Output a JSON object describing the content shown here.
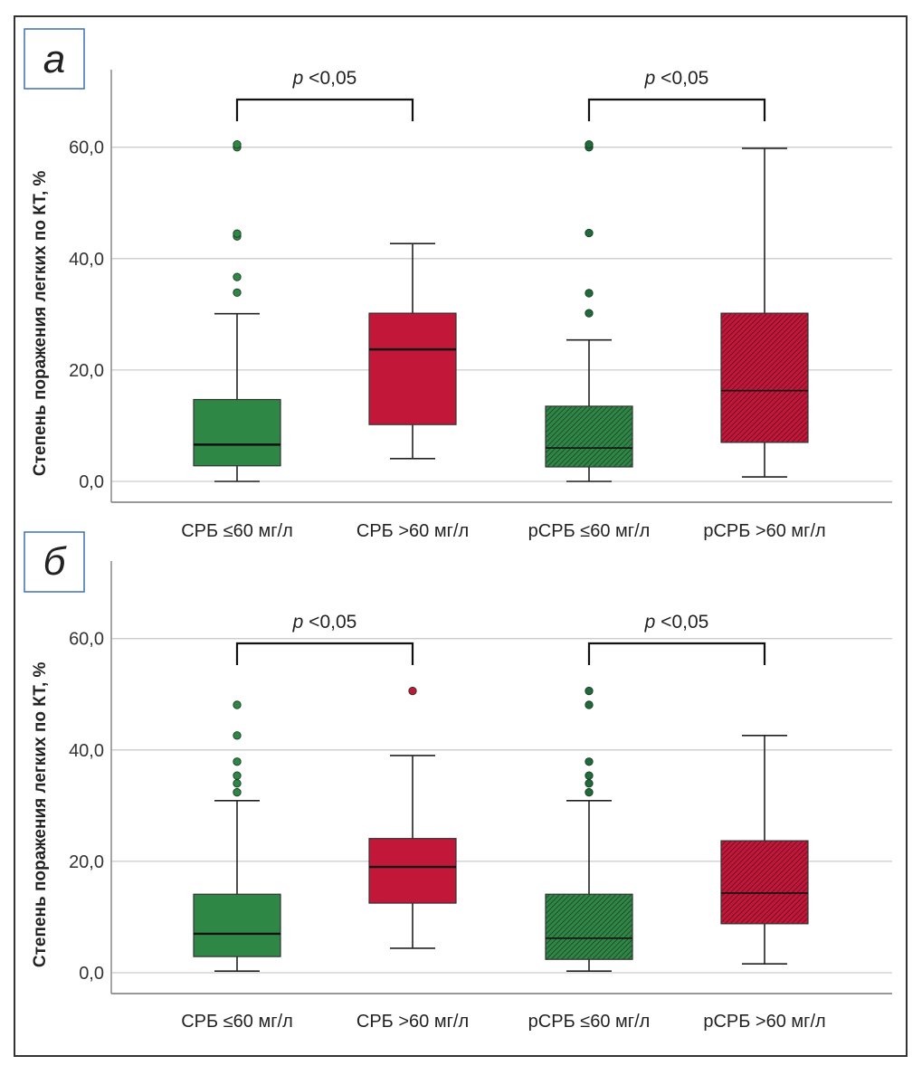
{
  "chart_data": [
    {
      "type": "boxplot",
      "panel_label": "а",
      "ylabel": "Степень поражения легких по КТ, %",
      "xlabel": "",
      "ylim": [
        -3.7,
        69.5
      ],
      "yticks": [
        0,
        20,
        40,
        60
      ],
      "ytick_labels": [
        "0,0",
        "20,0",
        "40,0",
        "60,0"
      ],
      "grid": true,
      "categories": [
        "СРБ ≤60 мг/л",
        "СРБ >60 мг/л",
        "рСРБ ≤60 мг/л",
        "рСРБ >60 мг/л"
      ],
      "boxes": [
        {
          "category": "СРБ ≤60 мг/л",
          "color": "#2e8745",
          "hatched": false,
          "whisker_low": 0.0,
          "q1": 2.8,
          "median": 6.6,
          "q3": 14.7,
          "whisker_high": 30.1,
          "outliers": [
            33.9,
            36.7,
            44.0,
            44.5,
            60.0,
            60.5
          ]
        },
        {
          "category": "СРБ >60 мг/л",
          "color": "#c3173a",
          "hatched": false,
          "whisker_low": 4.1,
          "q1": 10.2,
          "median": 23.7,
          "q3": 30.2,
          "whisker_high": 42.7,
          "outliers": []
        },
        {
          "category": "рСРБ ≤60 мг/л",
          "color": "#2e8745",
          "hatched": true,
          "whisker_low": 0.0,
          "q1": 2.6,
          "median": 6.0,
          "q3": 13.5,
          "whisker_high": 25.4,
          "outliers": [
            30.2,
            33.8,
            44.6,
            60.0,
            60.5
          ]
        },
        {
          "category": "рСРБ >60 мг/л",
          "color": "#c3173a",
          "hatched": true,
          "whisker_low": 0.8,
          "q1": 7.0,
          "median": 16.3,
          "q3": 30.2,
          "whisker_high": 59.8,
          "outliers": []
        }
      ],
      "annotations": [
        {
          "text": "p <0,05",
          "italic_prefix": "p",
          "rest": " <0,05",
          "from": 0,
          "to": 1
        },
        {
          "text": "p <0,05",
          "italic_prefix": "p",
          "rest": " <0,05",
          "from": 2,
          "to": 3
        }
      ]
    },
    {
      "type": "boxplot",
      "panel_label": "б",
      "ylabel": "Степень поражения легких по КТ, %",
      "xlabel": "",
      "ylim": [
        -3.7,
        69.5
      ],
      "yticks": [
        0,
        20,
        40,
        60
      ],
      "ytick_labels": [
        "0,0",
        "20,0",
        "40,0",
        "60,0"
      ],
      "grid": true,
      "categories": [
        "СРБ ≤60 мг/л",
        "СРБ >60 мг/л",
        "рСРБ ≤60 мг/л",
        "рСРБ >60 мг/л"
      ],
      "boxes": [
        {
          "category": "СРБ ≤60 мг/л",
          "color": "#2e8745",
          "hatched": false,
          "whisker_low": 0.3,
          "q1": 2.9,
          "median": 7.0,
          "q3": 14.1,
          "whisker_high": 30.9,
          "outliers": [
            32.4,
            34.0,
            35.4,
            37.9,
            42.6,
            48.1
          ]
        },
        {
          "category": "СРБ >60 мг/л",
          "color": "#c3173a",
          "hatched": false,
          "whisker_low": 4.4,
          "q1": 12.5,
          "median": 19.0,
          "q3": 24.1,
          "whisker_high": 39.0,
          "outliers": [
            50.6
          ]
        },
        {
          "category": "рСРБ ≤60 мг/л",
          "color": "#2e8745",
          "hatched": true,
          "whisker_low": 0.3,
          "q1": 2.4,
          "median": 6.2,
          "q3": 14.1,
          "whisker_high": 30.9,
          "outliers": [
            32.4,
            34.0,
            35.4,
            37.9,
            48.1,
            50.6
          ]
        },
        {
          "category": "рСРБ >60 мг/л",
          "color": "#c3173a",
          "hatched": true,
          "whisker_low": 1.6,
          "q1": 8.8,
          "median": 14.3,
          "q3": 23.7,
          "whisker_high": 42.6,
          "outliers": []
        }
      ],
      "annotations": [
        {
          "text": "p <0,05",
          "italic_prefix": "p",
          "rest": " <0,05",
          "from": 0,
          "to": 1
        },
        {
          "text": "p <0,05",
          "italic_prefix": "p",
          "rest": " <0,05",
          "from": 2,
          "to": 3
        }
      ]
    }
  ],
  "colors": {
    "green": "#2e8745",
    "red": "#c3173a",
    "panel_label_border": "#3d6fb6",
    "grid": "#cccccc"
  }
}
